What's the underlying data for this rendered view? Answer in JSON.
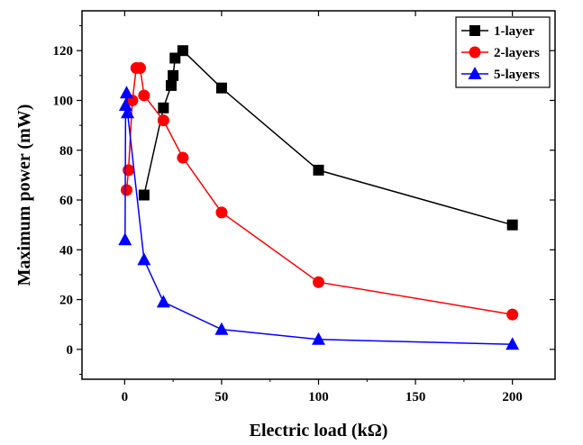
{
  "chart_data": {
    "type": "line",
    "xlabel": "Electric load (kΩ)",
    "ylabel": "Maximum power (mW)",
    "xlim": [
      -22,
      222
    ],
    "ylim": [
      -12,
      136
    ],
    "xticks": [
      0,
      50,
      100,
      150,
      200
    ],
    "yticks": [
      0,
      20,
      40,
      60,
      80,
      100,
      120
    ],
    "grid": false,
    "legend_position": "top-right",
    "series": [
      {
        "name": "1-layer",
        "color": "#000000",
        "marker": "square",
        "x": [
          10,
          20,
          24,
          25,
          26,
          30,
          50,
          100,
          200
        ],
        "y": [
          62,
          97,
          106,
          110,
          117,
          120,
          105,
          72,
          50
        ]
      },
      {
        "name": "2-layers",
        "color": "#ff0000",
        "marker": "circle",
        "x": [
          1,
          2,
          4,
          6,
          8,
          10,
          20,
          30,
          50,
          100,
          200
        ],
        "y": [
          64,
          72,
          100,
          113,
          113,
          102,
          92,
          77,
          55,
          27,
          14
        ]
      },
      {
        "name": "5-layers",
        "color": "#0000ff",
        "marker": "triangle",
        "x": [
          0.2,
          0.5,
          1,
          1.5,
          10,
          20,
          50,
          100,
          200
        ],
        "y": [
          44,
          98,
          103,
          95,
          36,
          19,
          8,
          4,
          2
        ]
      }
    ]
  }
}
